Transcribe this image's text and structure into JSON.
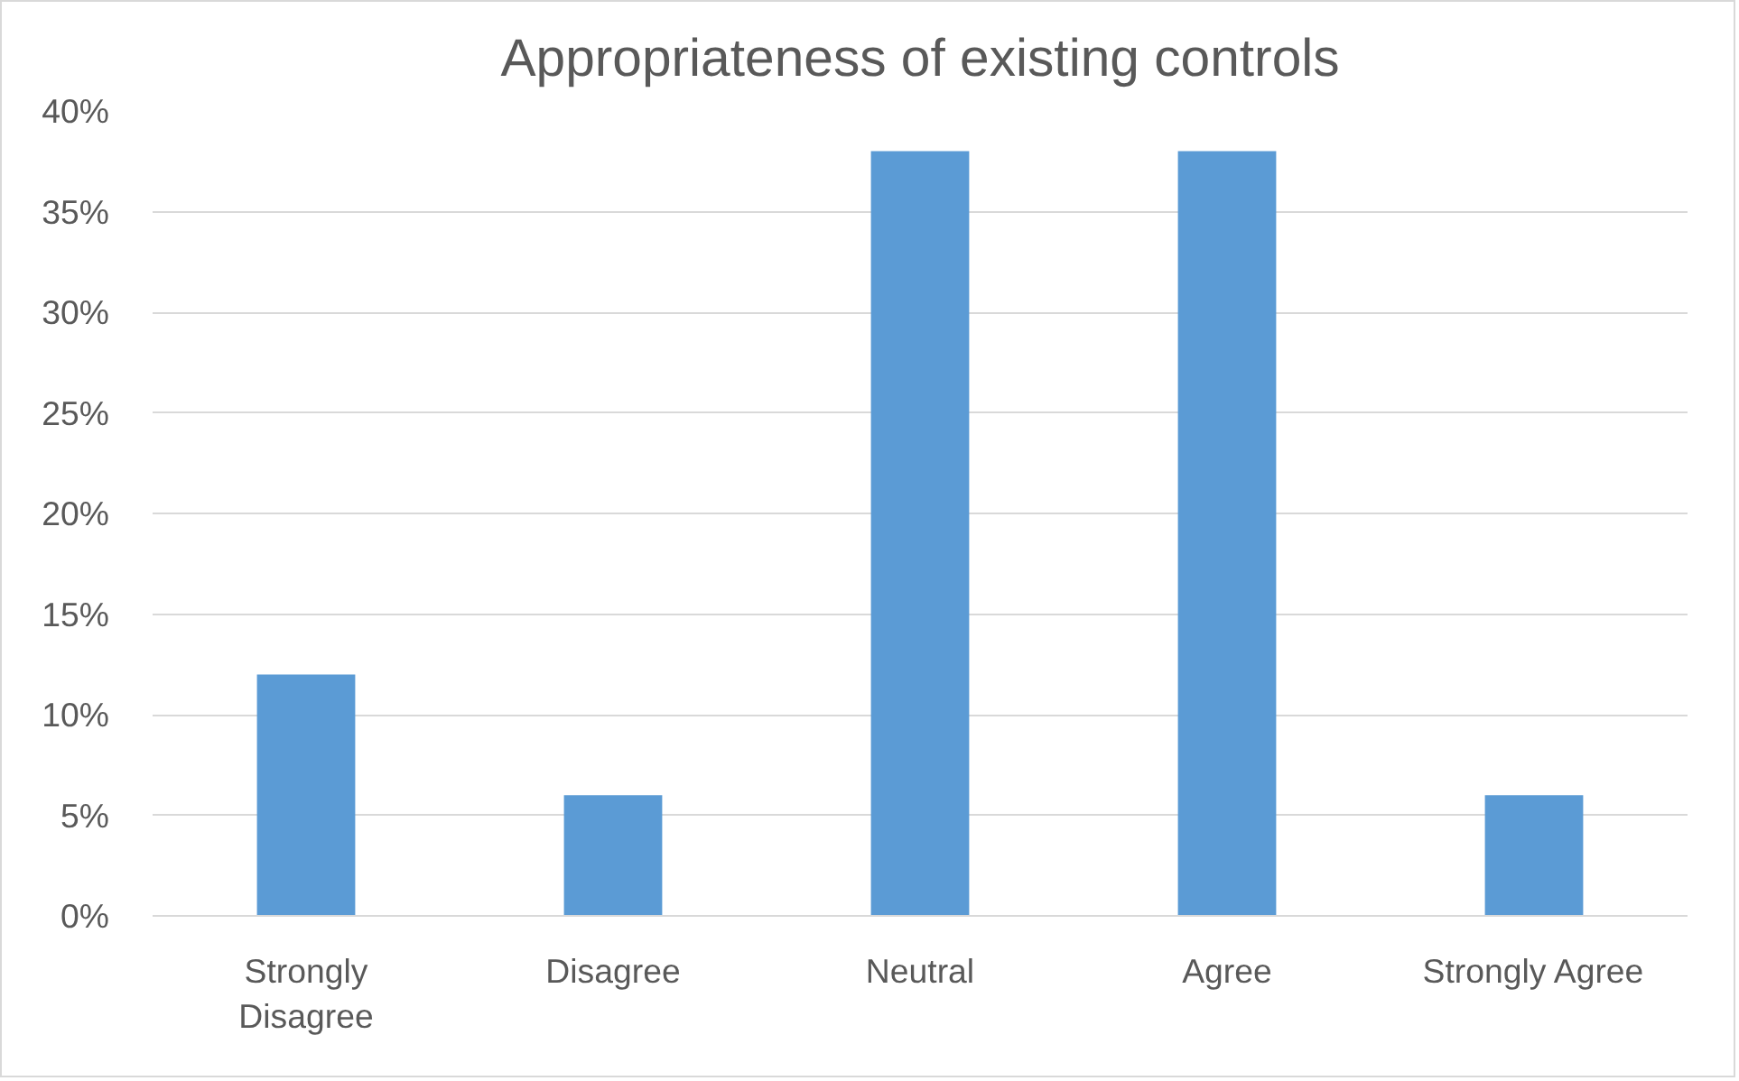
{
  "chart_data": {
    "type": "bar",
    "title": "Appropriateness of existing controls",
    "categories": [
      "Strongly Disagree",
      "Disagree",
      "Neutral",
      "Agree",
      "Strongly Agree"
    ],
    "values": [
      12,
      6,
      38,
      38,
      6
    ],
    "color": "#5b9bd5",
    "ylim": [
      0,
      40
    ],
    "yticks": [
      {
        "value": 0,
        "label": "0%"
      },
      {
        "value": 5,
        "label": "5%"
      },
      {
        "value": 10,
        "label": "10%"
      },
      {
        "value": 15,
        "label": "15%"
      },
      {
        "value": 20,
        "label": "20%"
      },
      {
        "value": 25,
        "label": "25%"
      },
      {
        "value": 30,
        "label": "30%"
      },
      {
        "value": 35,
        "label": "35%"
      },
      {
        "value": 40,
        "label": "40%"
      }
    ],
    "grid": "y"
  }
}
